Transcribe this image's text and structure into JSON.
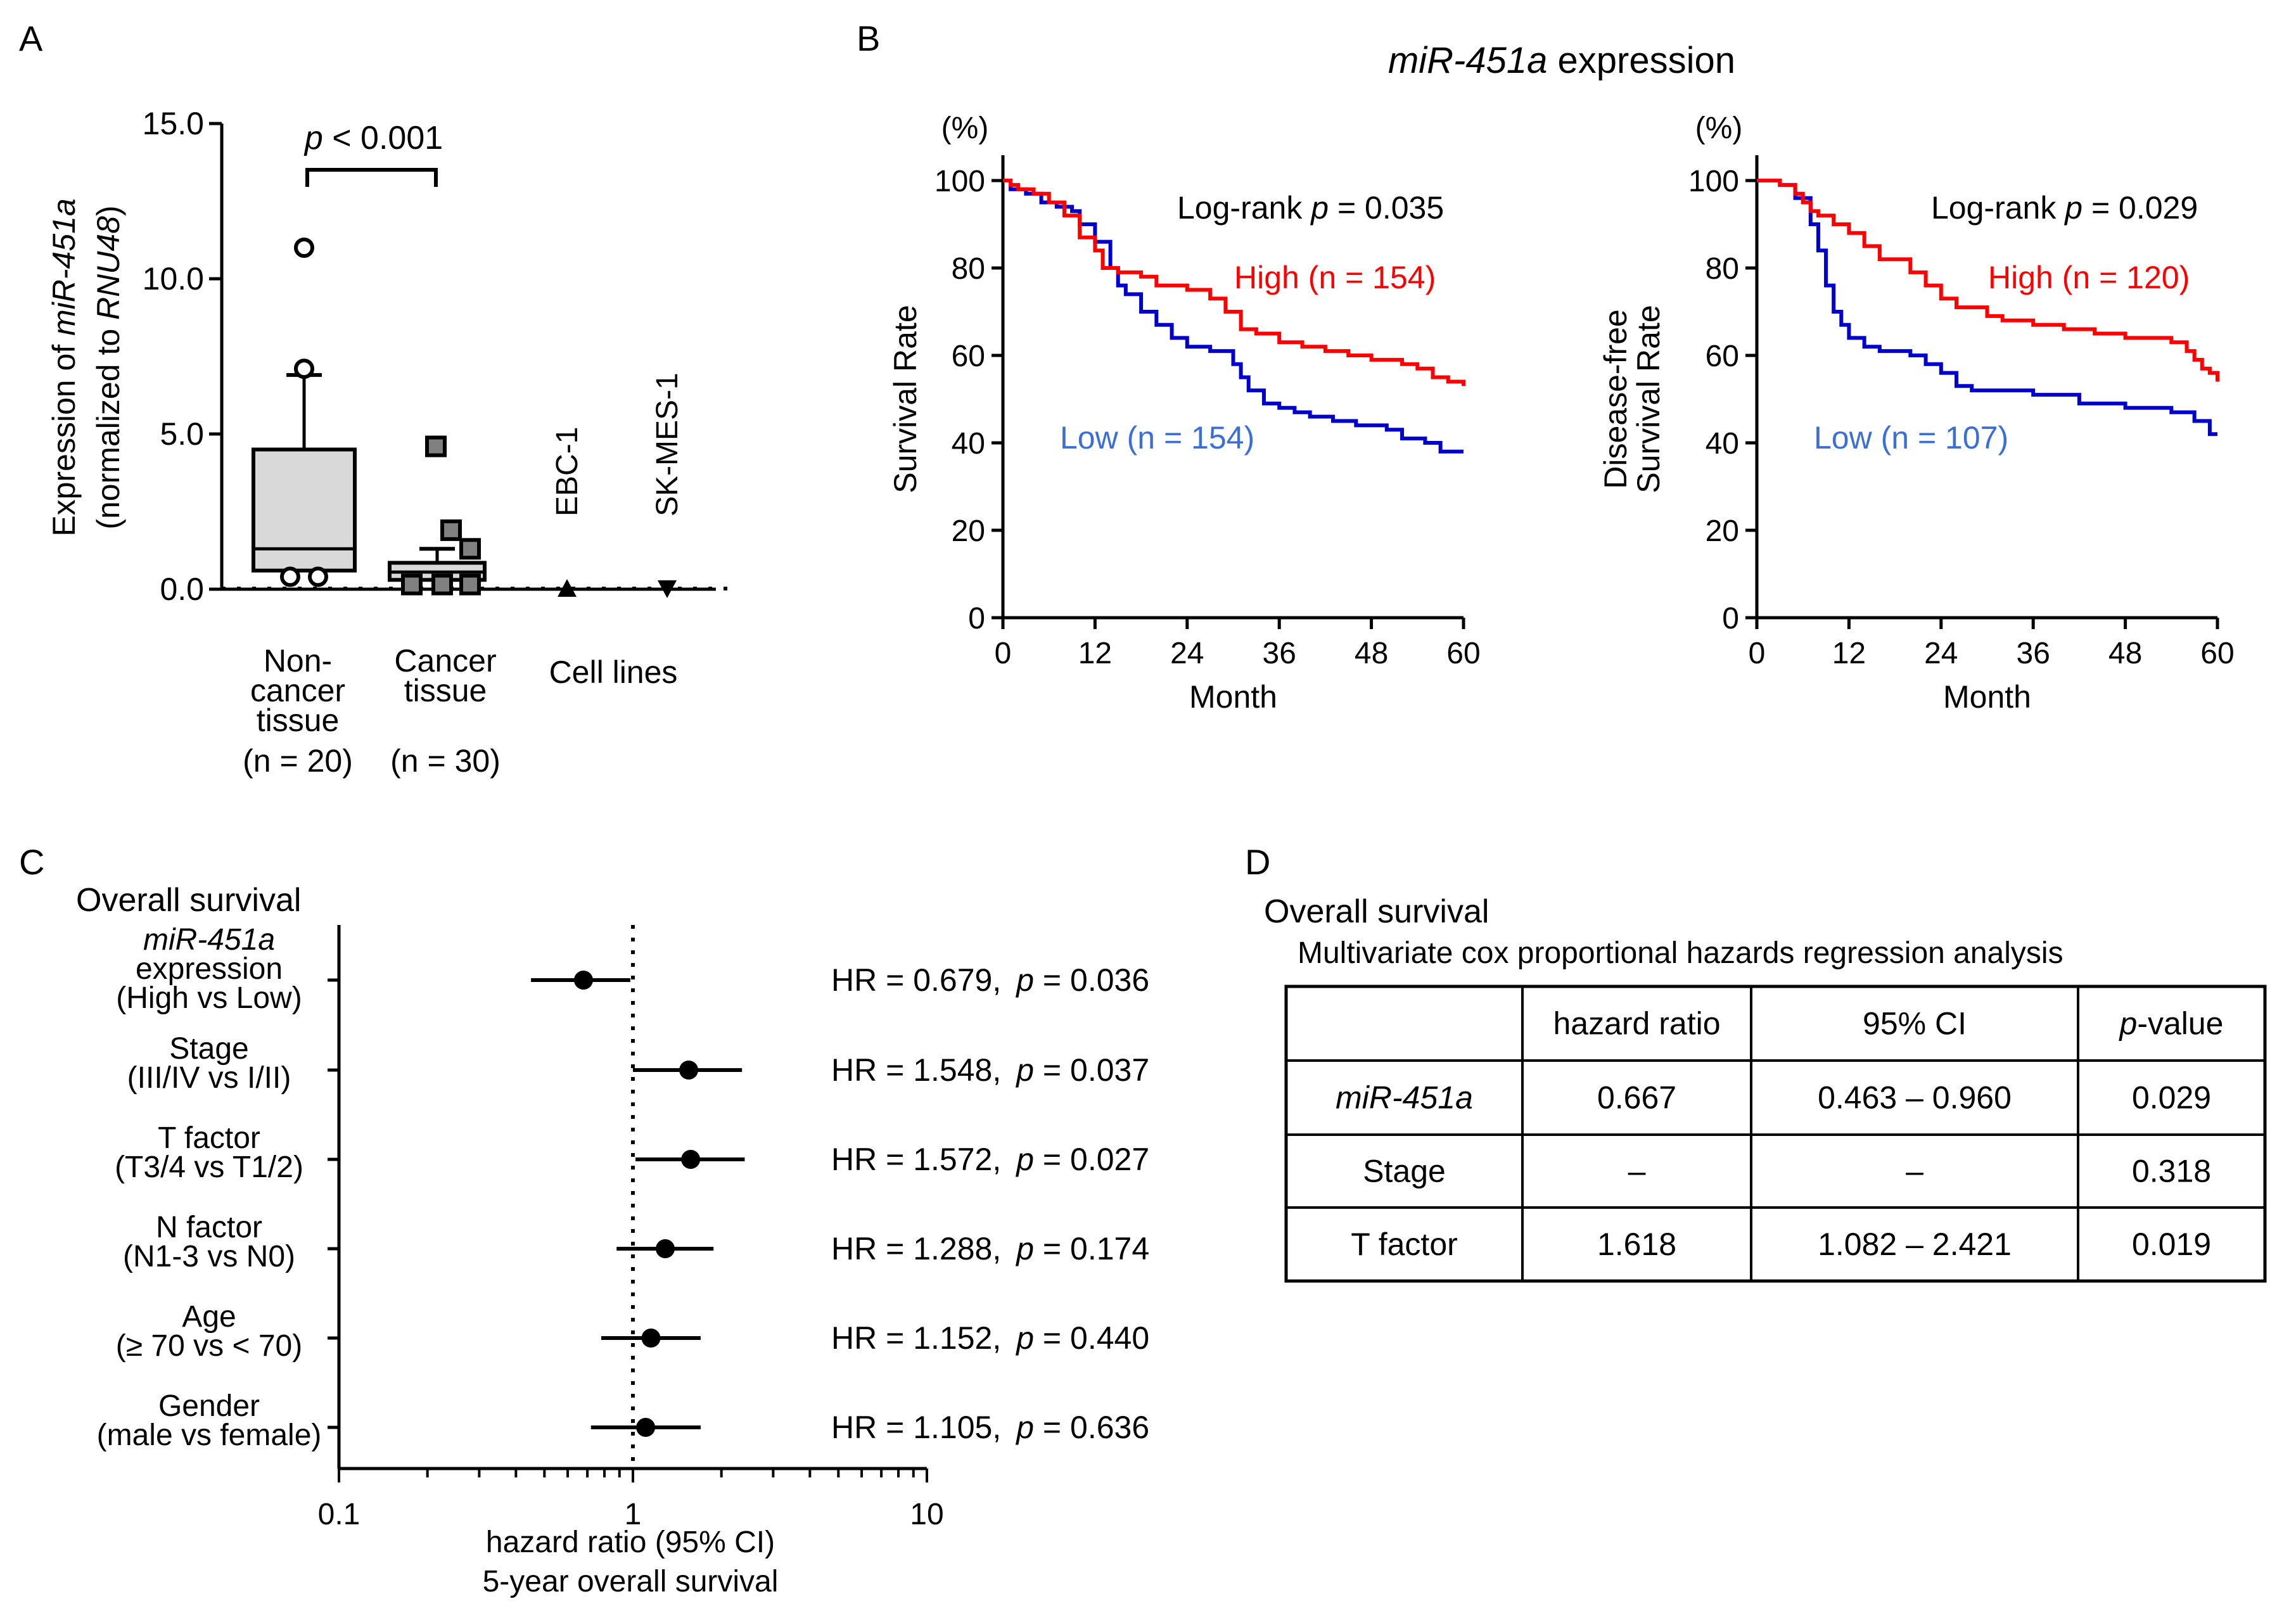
{
  "panels": {
    "a": "A",
    "b": "B",
    "c": "C",
    "d": "D"
  },
  "panel_a": {
    "y_label_line1_prefix": "Expression of ",
    "y_label_line1_italic": "miR-451a",
    "y_label_line2_prefix": "(normalized to ",
    "y_label_line2_italic": "RNU48",
    "y_label_line2_suffix": ")",
    "y_ticks": [
      "0.0",
      "5.0",
      "10.0",
      "15.0"
    ],
    "y_tick_values": [
      0,
      5,
      10,
      15
    ],
    "ylim": [
      0,
      15
    ],
    "sig_p_italic": "p",
    "sig_rest": " < 0.001",
    "groups": [
      {
        "name": "noncancer",
        "label_lines": [
          "Non-",
          "cancer",
          "tissue"
        ],
        "n": "(n = 20)",
        "q1": 0.6,
        "median": 1.3,
        "q3": 4.5,
        "whisker_low": 0.6,
        "whisker_high": 6.9,
        "outliers": [
          11.0,
          7.1,
          0.4,
          0.4
        ]
      },
      {
        "name": "cancer",
        "label_lines": [
          "Cancer",
          "tissue"
        ],
        "n": "(n = 30)",
        "q1": 0.3,
        "median": 0.55,
        "q3": 0.85,
        "whisker_low": 0.1,
        "whisker_high": 1.3,
        "outliers": [
          4.6,
          1.9,
          1.3,
          0.15,
          0.15,
          0.15
        ]
      }
    ],
    "cell_lines_label": "Cell lines",
    "cell_lines": [
      {
        "name": "EBC-1",
        "value": 0.0,
        "marker": "triangle-up"
      },
      {
        "name": "SK-MES-1",
        "value": 0.0,
        "marker": "triangle-down"
      }
    ]
  },
  "panel_b": {
    "title_italic": "miR-451a",
    "title_rest": " expression",
    "plots": [
      {
        "y_label_lines": [
          "Survival Rate"
        ],
        "y_unit": "(%)",
        "logrank_prefix": "Log-rank ",
        "logrank_italic": "p",
        "logrank_rest": " = 0.035",
        "high_label": "High (n = 154)",
        "low_label": "Low (n = 154)",
        "high": [
          [
            0,
            100
          ],
          [
            1,
            99
          ],
          [
            2,
            98
          ],
          [
            4,
            97
          ],
          [
            6,
            95
          ],
          [
            8,
            92
          ],
          [
            10,
            87
          ],
          [
            12,
            84
          ],
          [
            13,
            80
          ],
          [
            15,
            79
          ],
          [
            18,
            78
          ],
          [
            20,
            76
          ],
          [
            24,
            75
          ],
          [
            27,
            73
          ],
          [
            29,
            70
          ],
          [
            31,
            66
          ],
          [
            33,
            65
          ],
          [
            36,
            63
          ],
          [
            39,
            62
          ],
          [
            42,
            61
          ],
          [
            45,
            60
          ],
          [
            48,
            59
          ],
          [
            52,
            58
          ],
          [
            54,
            57
          ],
          [
            56,
            55
          ],
          [
            58,
            54
          ],
          [
            60,
            53
          ]
        ],
        "low": [
          [
            0,
            100
          ],
          [
            1,
            98
          ],
          [
            3,
            97
          ],
          [
            5,
            95
          ],
          [
            7,
            94
          ],
          [
            9,
            93
          ],
          [
            10,
            90
          ],
          [
            12,
            86
          ],
          [
            14,
            80
          ],
          [
            15,
            76
          ],
          [
            16,
            74
          ],
          [
            18,
            70
          ],
          [
            20,
            67
          ],
          [
            22,
            64
          ],
          [
            24,
            62
          ],
          [
            27,
            61
          ],
          [
            30,
            58
          ],
          [
            31,
            55
          ],
          [
            32,
            52
          ],
          [
            34,
            49
          ],
          [
            36,
            48
          ],
          [
            38,
            47
          ],
          [
            40,
            46
          ],
          [
            43,
            45
          ],
          [
            46,
            44
          ],
          [
            50,
            43
          ],
          [
            52,
            41
          ],
          [
            55,
            40
          ],
          [
            57,
            38
          ],
          [
            60,
            38
          ]
        ]
      },
      {
        "y_label_lines": [
          "Disease-free",
          "Survival Rate"
        ],
        "y_unit": "(%)",
        "logrank_prefix": "Log-rank ",
        "logrank_italic": "p",
        "logrank_rest": " = 0.029",
        "high_label": "High (n = 120)",
        "low_label": "Low (n = 107)",
        "high": [
          [
            0,
            100
          ],
          [
            3,
            99
          ],
          [
            5,
            97
          ],
          [
            6,
            95
          ],
          [
            7,
            93
          ],
          [
            8,
            92
          ],
          [
            10,
            90
          ],
          [
            12,
            88
          ],
          [
            14,
            85
          ],
          [
            16,
            82
          ],
          [
            20,
            79
          ],
          [
            22,
            76
          ],
          [
            24,
            73
          ],
          [
            26,
            71
          ],
          [
            30,
            69
          ],
          [
            32,
            68
          ],
          [
            36,
            67
          ],
          [
            40,
            66
          ],
          [
            44,
            65
          ],
          [
            48,
            64
          ],
          [
            52,
            64
          ],
          [
            54,
            63
          ],
          [
            56,
            61
          ],
          [
            57,
            59
          ],
          [
            58,
            57
          ],
          [
            59,
            56
          ],
          [
            60,
            54
          ]
        ],
        "low": [
          [
            0,
            100
          ],
          [
            3,
            99
          ],
          [
            5,
            96
          ],
          [
            7,
            90
          ],
          [
            8,
            84
          ],
          [
            9,
            76
          ],
          [
            10,
            70
          ],
          [
            11,
            67
          ],
          [
            12,
            64
          ],
          [
            14,
            62
          ],
          [
            16,
            61
          ],
          [
            20,
            60
          ],
          [
            22,
            58
          ],
          [
            24,
            56
          ],
          [
            26,
            53
          ],
          [
            28,
            52
          ],
          [
            36,
            51
          ],
          [
            42,
            49
          ],
          [
            48,
            48
          ],
          [
            54,
            47
          ],
          [
            57,
            45
          ],
          [
            59,
            42
          ],
          [
            60,
            42
          ]
        ]
      }
    ],
    "y_ticks": [
      "0",
      "20",
      "40",
      "60",
      "80",
      "100"
    ],
    "y_tick_values": [
      0,
      20,
      40,
      60,
      80,
      100
    ],
    "x_ticks": [
      "0",
      "12",
      "24",
      "36",
      "48",
      "60"
    ],
    "x_tick_values": [
      0,
      12,
      24,
      36,
      48,
      60
    ],
    "x_label": "Month",
    "xlim": [
      0,
      60
    ],
    "ylim": [
      0,
      100
    ]
  },
  "panel_c": {
    "title": "Overall survival",
    "x_ticks": [
      "0.1",
      "1",
      "10"
    ],
    "x_tick_values": [
      0.1,
      1,
      10
    ],
    "x_label_line1": "hazard ratio (95% CI)",
    "x_label_line2": "5-year overall survival",
    "hr_prefix": "HR = ",
    "p_label": "p",
    "rows": [
      {
        "label_lines": [
          "miR-451a",
          "expression",
          "(High vs Low)"
        ],
        "italic_first": true,
        "hr": 0.679,
        "low": 0.45,
        "high": 0.98,
        "hr_text": "0.679,",
        "p_text": " = 0.036"
      },
      {
        "label_lines": [
          "Stage",
          "(III/IV vs I/II)"
        ],
        "italic_first": false,
        "hr": 1.548,
        "low": 1.0,
        "high": 2.35,
        "hr_text": "1.548,",
        "p_text": " = 0.037"
      },
      {
        "label_lines": [
          "T factor",
          "(T3/4 vs T1/2)"
        ],
        "italic_first": false,
        "hr": 1.572,
        "low": 1.02,
        "high": 2.4,
        "hr_text": "1.572,",
        "p_text": " = 0.027"
      },
      {
        "label_lines": [
          "N factor",
          "(N1-3 vs N0)"
        ],
        "italic_first": false,
        "hr": 1.288,
        "low": 0.88,
        "high": 1.88,
        "hr_text": "1.288,",
        "p_text": " = 0.174"
      },
      {
        "label_lines": [
          "Age",
          "(≥ 70 vs < 70)"
        ],
        "italic_first": false,
        "hr": 1.152,
        "low": 0.78,
        "high": 1.7,
        "hr_text": "1.152,",
        "p_text": " = 0.440"
      },
      {
        "label_lines": [
          "Gender",
          "(male vs female)"
        ],
        "italic_first": false,
        "hr": 1.105,
        "low": 0.72,
        "high": 1.7,
        "hr_text": "1.105,",
        "p_text": " = 0.636"
      }
    ]
  },
  "panel_d": {
    "title": "Overall survival",
    "subtitle": "Multivariate cox proportional hazards regression analysis",
    "headers": [
      "",
      "hazard ratio",
      "95% CI",
      "-value"
    ],
    "header_p_italic": "p",
    "rows": [
      {
        "name": "miR-451a",
        "italic": true,
        "hr": "0.667",
        "ci": "0.463 – 0.960",
        "p": "0.029"
      },
      {
        "name": "Stage",
        "italic": false,
        "hr": "–",
        "ci": "–",
        "p": "0.318"
      },
      {
        "name": "T factor",
        "italic": false,
        "hr": "1.618",
        "ci": "1.082 – 2.421",
        "p": "0.019"
      }
    ]
  },
  "colors": {
    "high": "#ff0000",
    "low_line": "#0000cc",
    "low_text": "#3a6fd8",
    "box_fill": "#d9d9d9",
    "square_fill": "#808080",
    "axis": "#000000"
  }
}
